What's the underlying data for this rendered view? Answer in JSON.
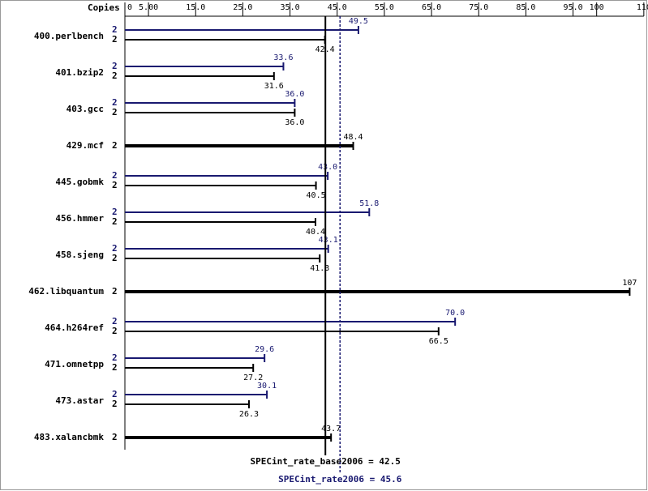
{
  "chart_data": {
    "type": "bar",
    "orientation": "horizontal",
    "copies_header": "Copies",
    "categories": [
      "400.perlbench",
      "401.bzip2",
      "403.gcc",
      "429.mcf",
      "445.gobmk",
      "456.hmmer",
      "458.sjeng",
      "462.libquantum",
      "464.h264ref",
      "471.omnetpp",
      "473.astar",
      "483.xalancbmk"
    ],
    "series": [
      {
        "color": "#000000",
        "copies": [
          2,
          2,
          2,
          2,
          2,
          2,
          2,
          2,
          2,
          2,
          2,
          2
        ],
        "values": [
          42.4,
          31.6,
          36.0,
          48.4,
          40.5,
          40.4,
          41.3,
          107,
          66.5,
          27.2,
          26.3,
          43.7
        ],
        "value_labels": [
          "42.4",
          "31.6",
          "36.0",
          "48.4",
          "40.5",
          "40.4",
          "41.3",
          "107",
          "66.5",
          "27.2",
          "26.3",
          "43.7"
        ]
      },
      {
        "color": "#191970",
        "copies": [
          2,
          2,
          2,
          null,
          2,
          2,
          2,
          null,
          2,
          2,
          2,
          null
        ],
        "values": [
          49.5,
          33.6,
          36.0,
          null,
          43.0,
          51.8,
          43.1,
          null,
          70.0,
          29.6,
          30.1,
          null
        ],
        "value_labels": [
          "49.5",
          "33.6",
          "36.0",
          null,
          "43.0",
          "51.8",
          "43.1",
          null,
          "70.0",
          "29.6",
          "30.1",
          null
        ]
      }
    ],
    "xlim": [
      0,
      110
    ],
    "xticks": [
      0,
      {
        "value": 5,
        "label": "5.00"
      },
      {
        "value": 15,
        "label": "15.0"
      },
      {
        "value": 25,
        "label": "25.0"
      },
      {
        "value": 35,
        "label": "35.0"
      },
      {
        "value": 45,
        "label": "45.0"
      },
      {
        "value": 55,
        "label": "55.0"
      },
      {
        "value": 65,
        "label": "65.0"
      },
      {
        "value": 75,
        "label": "75.0"
      },
      {
        "value": 85,
        "label": "85.0"
      },
      {
        "value": 95,
        "label": "95.0"
      },
      100,
      110
    ],
    "summary": [
      {
        "label": "SPECint_rate_base2006 = 42.5",
        "value": 42.5,
        "color": "#000000",
        "dashed": false
      },
      {
        "label": "SPECint_rate2006 = 45.6",
        "value": 45.6,
        "color": "#191970",
        "dashed": true
      }
    ]
  }
}
